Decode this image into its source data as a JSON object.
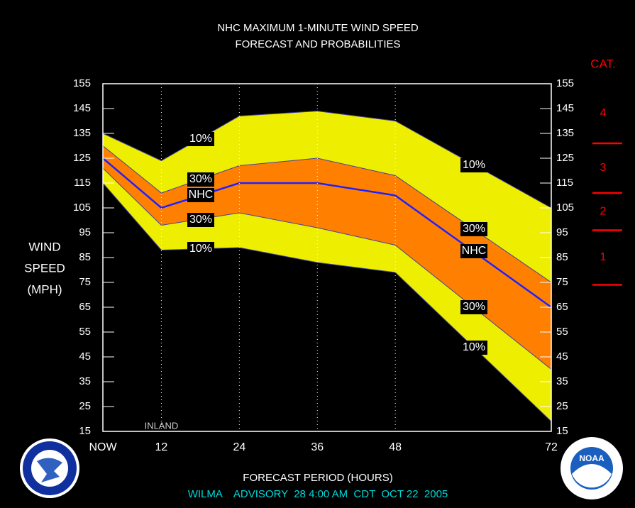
{
  "chart_data": {
    "type": "band",
    "title": "NHC MAXIMUM 1-MINUTE WIND SPEED",
    "subtitle": "FORECAST AND PROBABILITIES",
    "ylabel": [
      "WIND",
      "SPEED",
      "(MPH)"
    ],
    "xlabel": "FORECAST PERIOD (HOURS)",
    "footer": "WILMA    ADVISORY  28 4:00 AM  CDT  OCT 22  2005",
    "annotation": {
      "text": "INLAND",
      "x": 12
    },
    "x": [
      3,
      12,
      24,
      36,
      48,
      72
    ],
    "xlim": [
      3,
      72
    ],
    "xticks": [
      {
        "value": 3,
        "label": "NOW"
      },
      12,
      24,
      36,
      48,
      72
    ],
    "ylim": [
      15,
      155
    ],
    "yticks": [
      15,
      25,
      35,
      45,
      55,
      65,
      75,
      85,
      95,
      105,
      115,
      125,
      135,
      145,
      155
    ],
    "bands": [
      {
        "name": "10%",
        "color": "#eeee00",
        "upper": [
          135,
          124,
          142,
          144,
          140,
          105
        ],
        "lower": [
          115,
          88,
          89,
          83,
          79,
          19
        ]
      },
      {
        "name": "30%",
        "color": "#ff8000",
        "upper": [
          130,
          111,
          122,
          125,
          118,
          75
        ],
        "lower": [
          121,
          98,
          103,
          97,
          90,
          40
        ]
      }
    ],
    "line": {
      "name": "NHC",
      "color": "#2020ff",
      "values": [
        125,
        105,
        115,
        115,
        110,
        65
      ]
    },
    "category_scale": {
      "title": "CAT.",
      "color": "#ff0000",
      "labels": [
        "1",
        "2",
        "3",
        "4"
      ],
      "thresholds": [
        74,
        96,
        111,
        131
      ]
    },
    "logos": {
      "right": "NOAA"
    }
  }
}
